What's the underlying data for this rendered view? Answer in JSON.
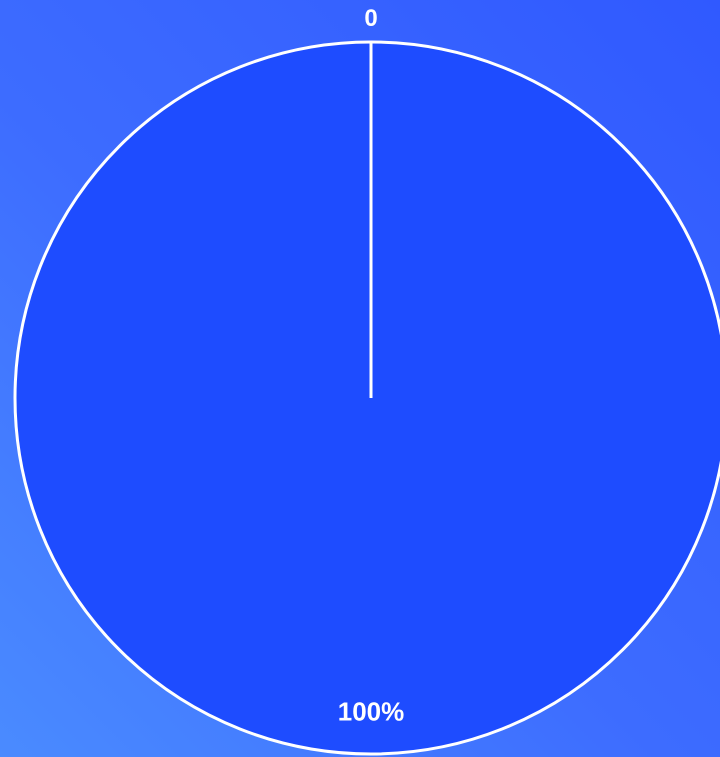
{
  "chart_data": {
    "type": "pie",
    "title": "",
    "categories": [
      ""
    ],
    "values": [
      100
    ],
    "data_labels": [
      "100%"
    ],
    "start_label": "0",
    "slice_colors": [
      "#1e4cff"
    ],
    "stroke_color": "#ffffff",
    "background_colors": [
      "#4a8bff",
      "#3059ff"
    ]
  }
}
